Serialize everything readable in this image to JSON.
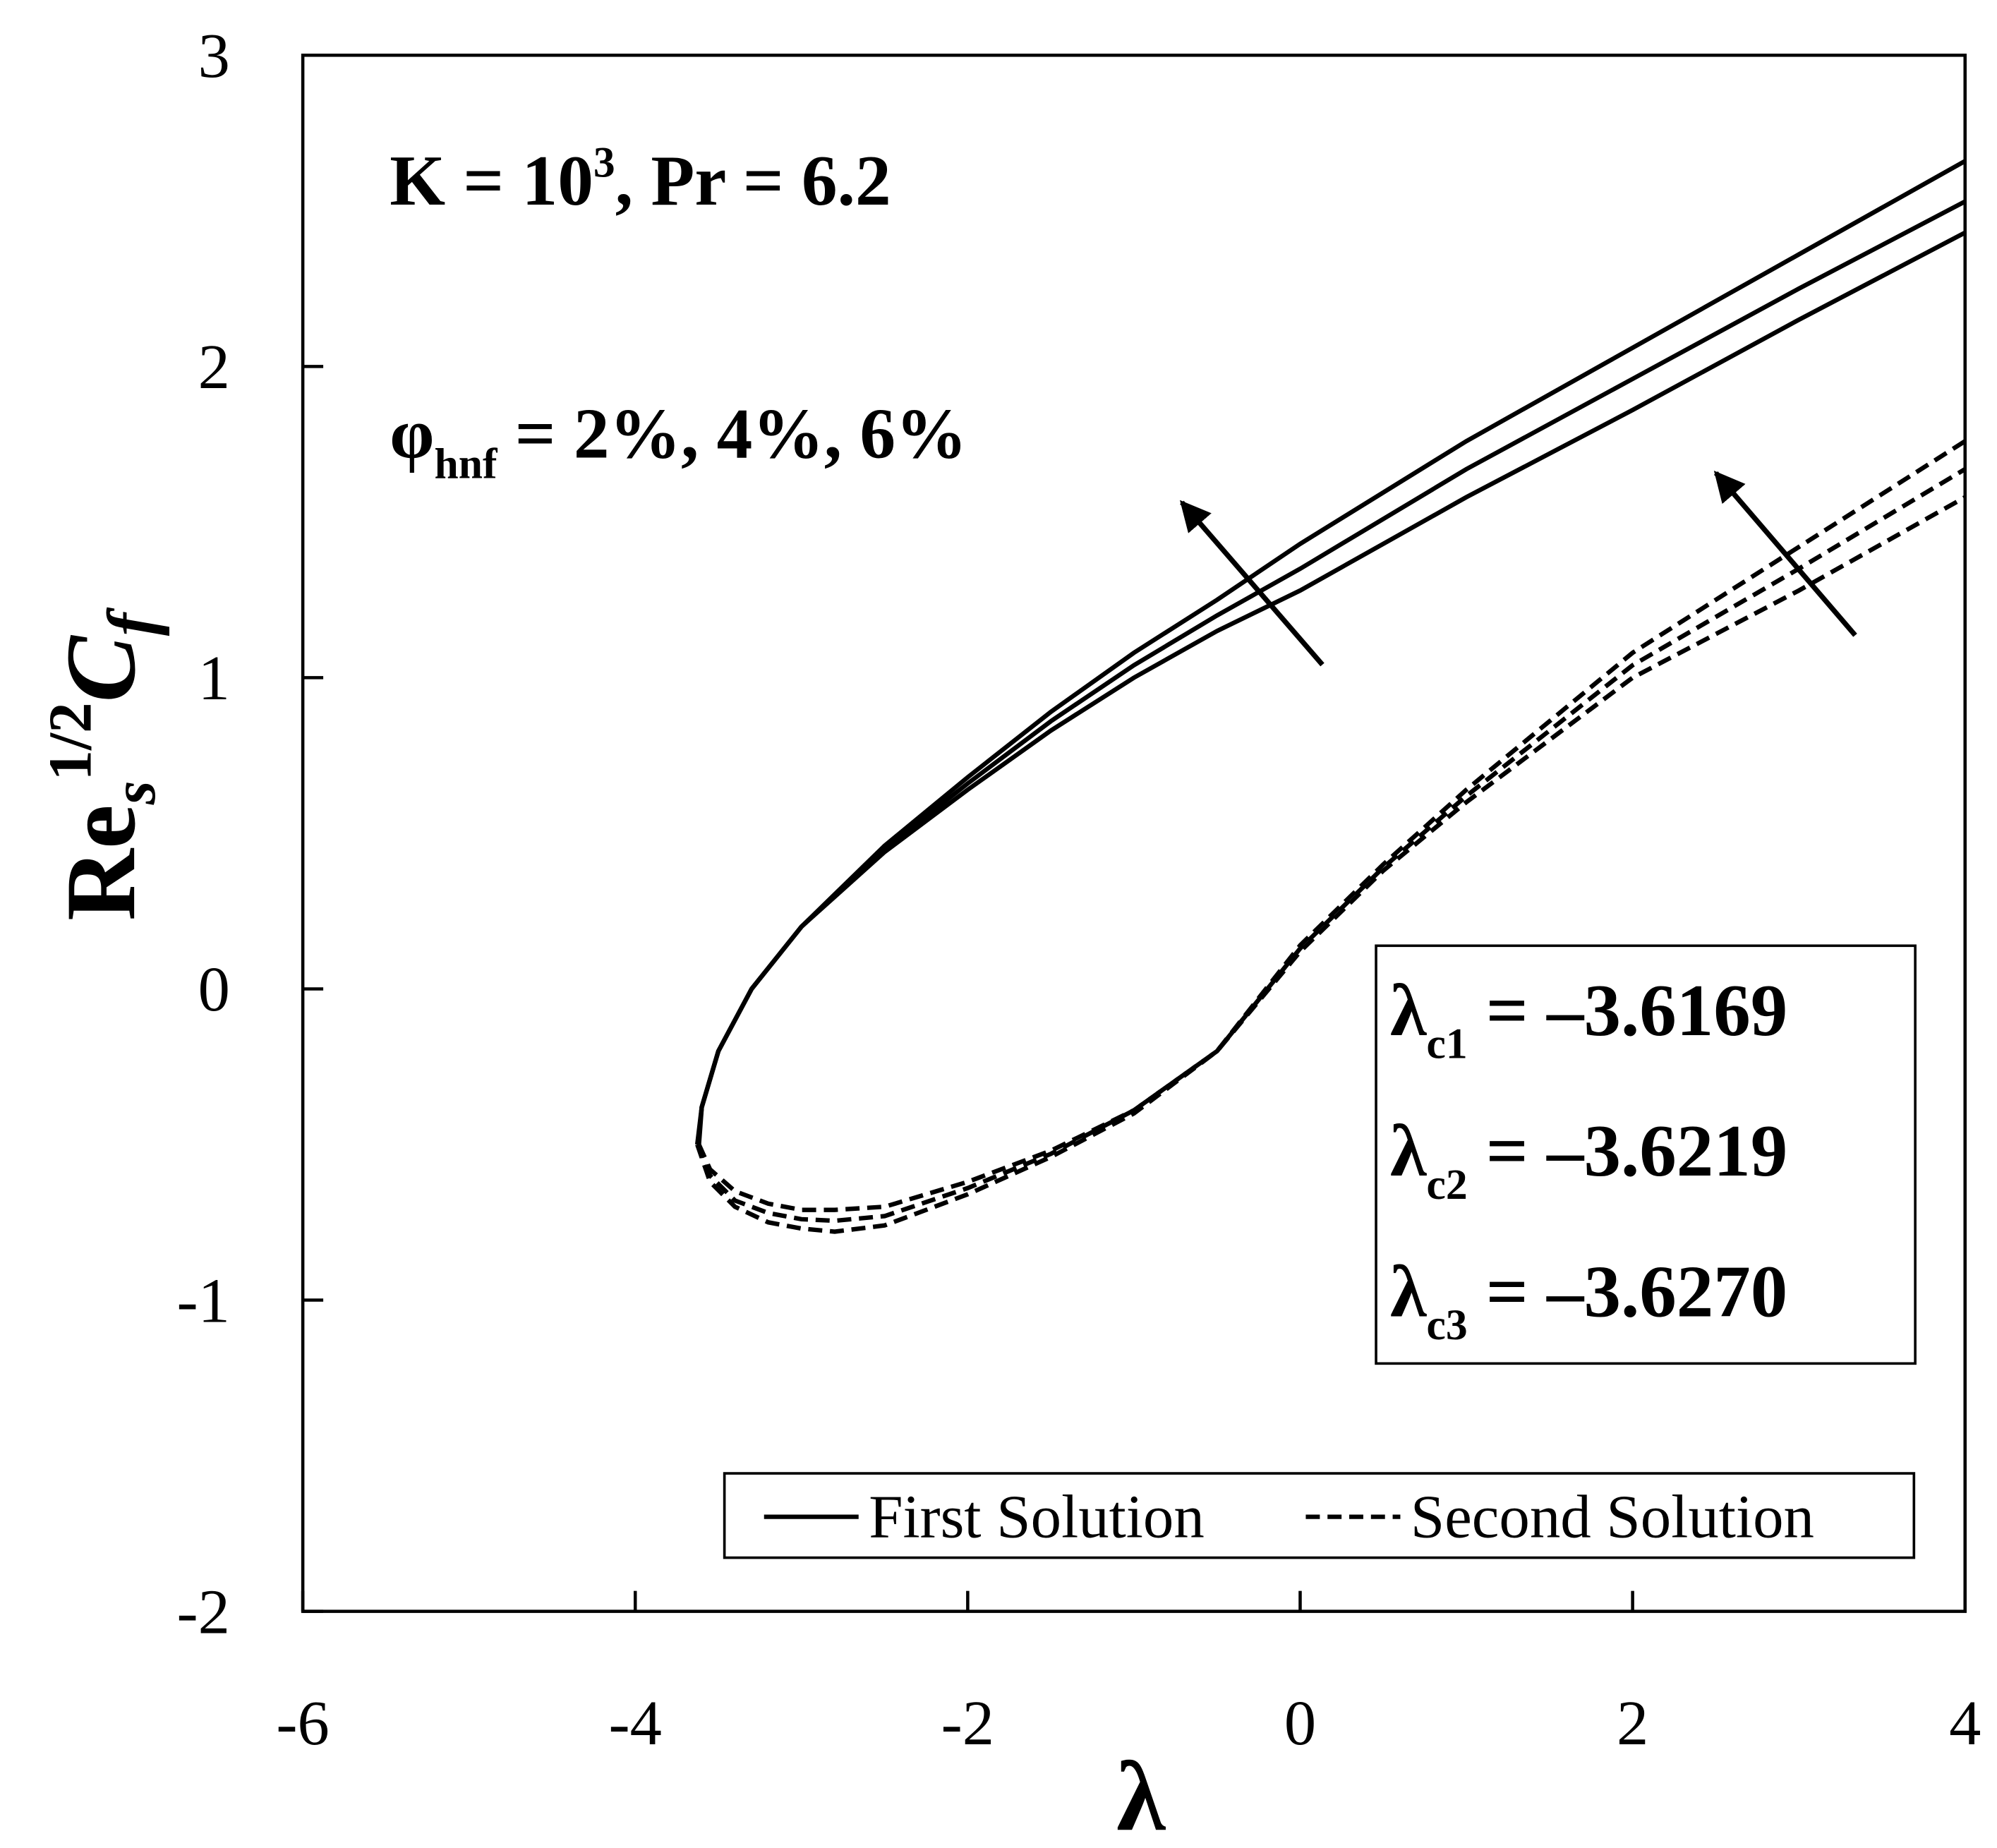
{
  "chart_data": {
    "type": "line",
    "x_label": "λ",
    "y_label": {
      "base": "Re",
      "sub": "s",
      "sup": "1/2",
      "symbol": "C",
      "symbol_sub": "f"
    },
    "xlim": [
      -6,
      4
    ],
    "xticks": [
      -6,
      -4,
      -2,
      0,
      2,
      4
    ],
    "ylim": [
      -2,
      3
    ],
    "yticks": [
      -2,
      -1,
      0,
      1,
      2,
      3
    ],
    "color": "#000000",
    "series": [
      {
        "style": "solid",
        "x": [
          -3.6169,
          -3.6,
          -3.5,
          -3.3,
          -3,
          -2.5,
          -2,
          -1.5,
          -1,
          -0.5,
          0,
          1,
          2,
          3,
          4
        ],
        "values": [
          -0.5,
          -0.38,
          -0.2,
          0.0,
          0.2,
          0.44,
          0.64,
          0.83,
          1.0,
          1.15,
          1.28,
          1.58,
          1.86,
          2.15,
          2.43
        ]
      },
      {
        "style": "solid",
        "x": [
          -3.6219,
          -3.6,
          -3.5,
          -3.3,
          -3,
          -2.5,
          -2,
          -1.5,
          -1,
          -0.5,
          0,
          1,
          2,
          3,
          4
        ],
        "values": [
          -0.5,
          -0.38,
          -0.2,
          0.0,
          0.2,
          0.45,
          0.66,
          0.86,
          1.04,
          1.2,
          1.35,
          1.67,
          1.96,
          2.25,
          2.53
        ]
      },
      {
        "style": "solid",
        "x": [
          -3.627,
          -3.6,
          -3.5,
          -3.3,
          -3,
          -2.5,
          -2,
          -1.5,
          -1,
          -0.5,
          0,
          1,
          2,
          3,
          4
        ],
        "values": [
          -0.5,
          -0.38,
          -0.2,
          0.0,
          0.2,
          0.46,
          0.68,
          0.89,
          1.08,
          1.25,
          1.43,
          1.76,
          2.06,
          2.36,
          2.66
        ]
      },
      {
        "style": "dashed",
        "x": [
          -3.6169,
          -3.55,
          -3.4,
          -3.2,
          -3,
          -2.8,
          -2.5,
          -2,
          -1.5,
          -1,
          -0.5,
          0,
          0.5,
          1,
          2,
          3,
          4
        ],
        "values": [
          -0.5,
          -0.58,
          -0.65,
          -0.69,
          -0.71,
          -0.71,
          -0.7,
          -0.62,
          -0.52,
          -0.39,
          -0.2,
          0.12,
          0.38,
          0.6,
          1.0,
          1.28,
          1.58
        ]
      },
      {
        "style": "dashed",
        "x": [
          -3.6219,
          -3.55,
          -3.4,
          -3.2,
          -3,
          -2.8,
          -2.5,
          -2,
          -1.5,
          -1,
          -0.5,
          0,
          0.5,
          1,
          2,
          3,
          4
        ],
        "values": [
          -0.5,
          -0.6,
          -0.68,
          -0.72,
          -0.74,
          -0.745,
          -0.73,
          -0.64,
          -0.53,
          -0.39,
          -0.2,
          0.13,
          0.39,
          0.62,
          1.04,
          1.35,
          1.67
        ]
      },
      {
        "style": "dashed",
        "x": [
          -3.627,
          -3.55,
          -3.4,
          -3.2,
          -3,
          -2.8,
          -2.5,
          -2,
          -1.5,
          -1,
          -0.5,
          0,
          0.5,
          1,
          2,
          3,
          4
        ],
        "values": [
          -0.5,
          -0.62,
          -0.7,
          -0.75,
          -0.77,
          -0.78,
          -0.76,
          -0.66,
          -0.54,
          -0.4,
          -0.2,
          0.14,
          0.4,
          0.64,
          1.08,
          1.42,
          1.76
        ]
      }
    ],
    "legend": {
      "corner": "lower right",
      "entries": [
        {
          "label": "First Solution",
          "style": "solid"
        },
        {
          "label": "Second Solution",
          "style": "dashed"
        }
      ]
    },
    "annotations": [
      {
        "text": "K = 10",
        "sup": "3",
        "tail": ", Pr = 6.2"
      },
      {
        "text": "φ",
        "sub": "hnf",
        "tail": " = 2%, 4%, 6%"
      }
    ],
    "critical_values": [
      {
        "symbol": "λ",
        "sub": "c1",
        "text": " = –3.6169"
      },
      {
        "symbol": "λ",
        "sub": "c2",
        "text": " = –3.6219"
      },
      {
        "symbol": "λ",
        "sub": "c3",
        "text": " = –3.6270"
      }
    ]
  }
}
